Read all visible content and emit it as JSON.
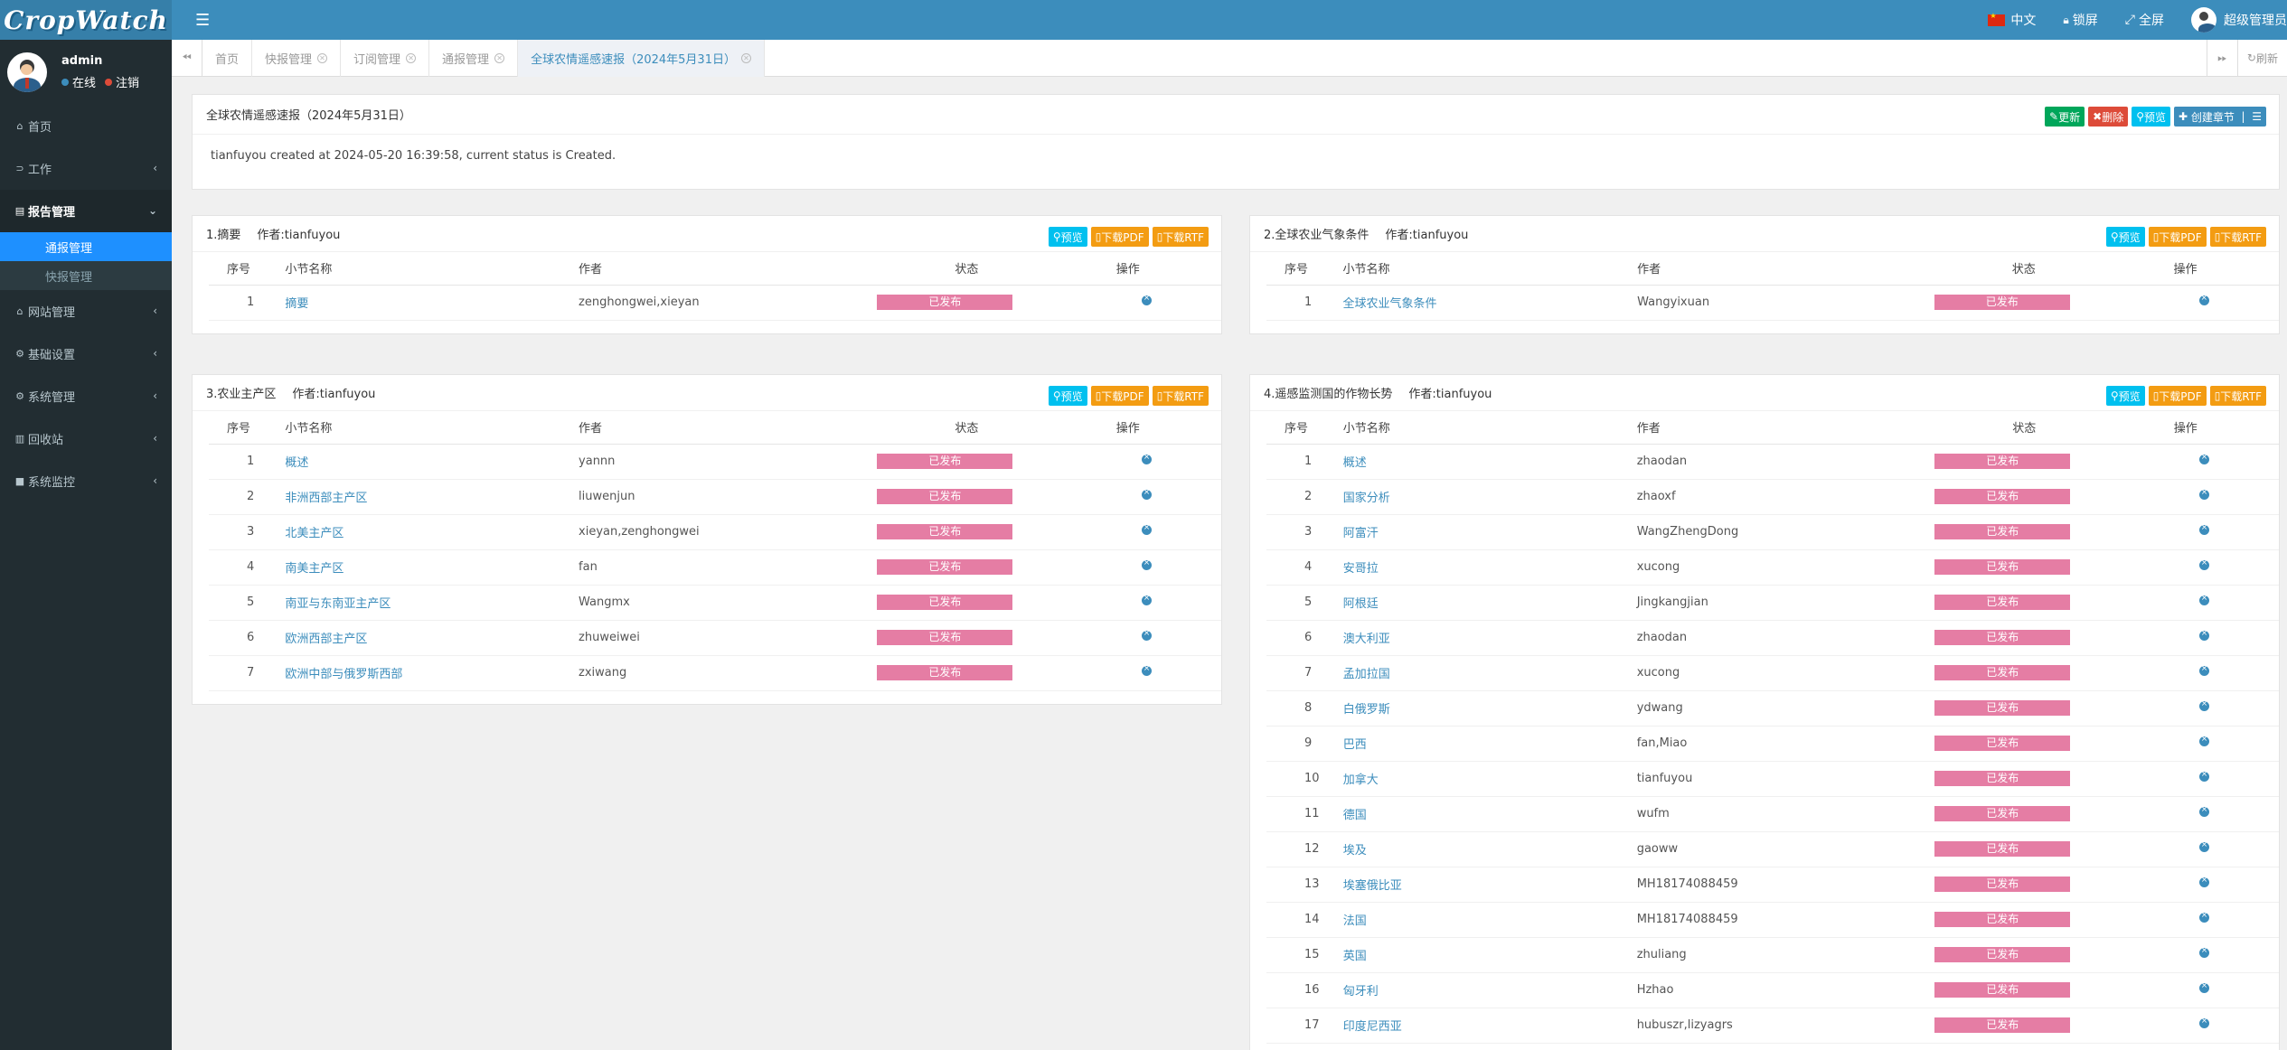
{
  "app": {
    "logo_text": "CropWatch"
  },
  "user": {
    "name": "admin",
    "online": "在线",
    "logout": "注销"
  },
  "sidebar": {
    "items": [
      {
        "label": "首页",
        "icon": "home-icon"
      },
      {
        "label": "工作",
        "icon": "rss-icon"
      },
      {
        "label": "报告管理",
        "icon": "file-icon",
        "open": true,
        "children": [
          {
            "label": "通报管理",
            "active": true
          },
          {
            "label": "快报管理",
            "active": false
          }
        ]
      },
      {
        "label": "网站管理",
        "icon": "bank-icon"
      },
      {
        "label": "基础设置",
        "icon": "cogs-icon"
      },
      {
        "label": "系统管理",
        "icon": "gear-icon"
      },
      {
        "label": "回收站",
        "icon": "trash-icon"
      },
      {
        "label": "系统监控",
        "icon": "camera-icon"
      }
    ]
  },
  "topbar": {
    "language": "中文",
    "lock": "锁屏",
    "fullscreen": "全屏",
    "account": "超级管理员"
  },
  "tabs": {
    "items": [
      {
        "label": "首页",
        "closable": false,
        "active": false
      },
      {
        "label": "快报管理",
        "closable": true,
        "active": false
      },
      {
        "label": "订阅管理",
        "closable": true,
        "active": false
      },
      {
        "label": "通报管理",
        "closable": true,
        "active": false
      },
      {
        "label": "全球农情遥感速报（2024年5月31日）",
        "closable": true,
        "active": true
      }
    ],
    "refresh": "刷新"
  },
  "report": {
    "title": "全球农情遥感速报（2024年5月31日）",
    "info": "tianfuyou created at 2024-05-20 16:39:58, current status is Created.",
    "buttons": {
      "update": "更新",
      "delete": "删除",
      "preview": "预览",
      "create_chapter": "创建章节"
    }
  },
  "common": {
    "preview": "预览",
    "download_pdf": "下载PDF",
    "download_rtf": "下载RTF",
    "col_no": "序号",
    "col_name": "小节名称",
    "col_author": "作者",
    "col_status": "状态",
    "col_op": "操作"
  },
  "chapters": [
    {
      "title": "1.摘要",
      "author": "作者:tianfuyou",
      "rows": [
        {
          "no": "1",
          "name": "摘要",
          "author": "zenghongwei,xieyan",
          "status": "已发布"
        }
      ]
    },
    {
      "title": "2.全球农业气象条件",
      "author": "作者:tianfuyou",
      "rows": [
        {
          "no": "1",
          "name": "全球农业气象条件",
          "author": "Wangyixuan",
          "status": "已发布"
        }
      ]
    },
    {
      "title": "3.农业主产区",
      "author": "作者:tianfuyou",
      "rows": [
        {
          "no": "1",
          "name": "概述",
          "author": "yannn",
          "status": "已发布"
        },
        {
          "no": "2",
          "name": "非洲西部主产区",
          "author": "liuwenjun",
          "status": "已发布"
        },
        {
          "no": "3",
          "name": "北美主产区",
          "author": "xieyan,zenghongwei",
          "status": "已发布"
        },
        {
          "no": "4",
          "name": "南美主产区",
          "author": "fan",
          "status": "已发布"
        },
        {
          "no": "5",
          "name": "南亚与东南亚主产区",
          "author": "Wangmx",
          "status": "已发布"
        },
        {
          "no": "6",
          "name": "欧洲西部主产区",
          "author": "zhuweiwei",
          "status": "已发布"
        },
        {
          "no": "7",
          "name": "欧洲中部与俄罗斯西部",
          "author": "zxiwang",
          "status": "已发布"
        }
      ]
    },
    {
      "title": "4.遥感监测国的作物长势",
      "author": "作者:tianfuyou",
      "rows": [
        {
          "no": "1",
          "name": "概述",
          "author": "zhaodan",
          "status": "已发布"
        },
        {
          "no": "2",
          "name": "国家分析",
          "author": "zhaoxf",
          "status": "已发布"
        },
        {
          "no": "3",
          "name": "阿富汗",
          "author": "WangZhengDong",
          "status": "已发布"
        },
        {
          "no": "4",
          "name": "安哥拉",
          "author": "xucong",
          "status": "已发布"
        },
        {
          "no": "5",
          "name": "阿根廷",
          "author": "Jingkangjian",
          "status": "已发布"
        },
        {
          "no": "6",
          "name": "澳大利亚",
          "author": "zhaodan",
          "status": "已发布"
        },
        {
          "no": "7",
          "name": "孟加拉国",
          "author": "xucong",
          "status": "已发布"
        },
        {
          "no": "8",
          "name": "白俄罗斯",
          "author": "ydwang",
          "status": "已发布"
        },
        {
          "no": "9",
          "name": "巴西",
          "author": "fan,Miao",
          "status": "已发布"
        },
        {
          "no": "10",
          "name": "加拿大",
          "author": "tianfuyou",
          "status": "已发布"
        },
        {
          "no": "11",
          "name": "德国",
          "author": "wufm",
          "status": "已发布"
        },
        {
          "no": "12",
          "name": "埃及",
          "author": "gaoww",
          "status": "已发布"
        },
        {
          "no": "13",
          "name": "埃塞俄比亚",
          "author": "MH18174088459",
          "status": "已发布"
        },
        {
          "no": "14",
          "name": "法国",
          "author": "MH18174088459",
          "status": "已发布"
        },
        {
          "no": "15",
          "name": "英国",
          "author": "zhuliang",
          "status": "已发布"
        },
        {
          "no": "16",
          "name": "匈牙利",
          "author": "Hzhao",
          "status": "已发布"
        },
        {
          "no": "17",
          "name": "印度尼西亚",
          "author": "hubuszr,lizyagrs",
          "status": "已发布"
        }
      ]
    }
  ],
  "colors": {
    "sidebar_bg": "#222d32",
    "topbar_bg": "#3c8dbc",
    "active_menu": "#1e90ff",
    "status_published": "#e57da4"
  }
}
